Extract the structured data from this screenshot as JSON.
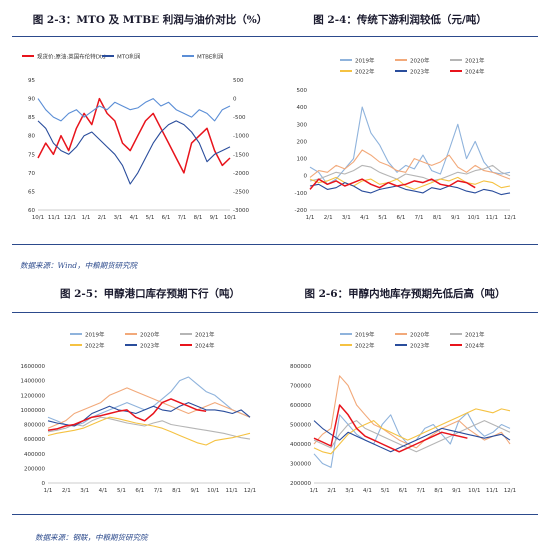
{
  "titles": {
    "c1": "图 2-3：MTO 及 MTBE 利润与油价对比（%）",
    "c2": "图 2-4：传统下游利润较低（元/吨）",
    "c3": "图 2-5：甲醇港口库存预期下行（吨）",
    "c4": "图 2-6：甲醇内地库存预期先低后高（吨）"
  },
  "sources": {
    "top": "数据来源：Wind，中粮期货研究院",
    "bottom": "数据来源：钢联，中粮期货研究院"
  },
  "chart_data": [
    {
      "type": "line",
      "legend": [
        "现货价:原油:英国布伦特Dtd",
        "MTO利润",
        "MTBE利润"
      ],
      "legend_placement": "top",
      "x_ticks": [
        "10/1",
        "11/1",
        "12/1",
        "1/1",
        "2/1",
        "3/1",
        "4/1",
        "5/1",
        "6/1",
        "7/1",
        "8/1",
        "9/1",
        "10/1"
      ],
      "y_left_ticks": [
        "60",
        "65",
        "70",
        "75",
        "80",
        "85",
        "90",
        "95"
      ],
      "y_right_ticks": [
        "-3000",
        "-2500",
        "-2000",
        "-1500",
        "-1000",
        "-500",
        "0",
        "500"
      ],
      "ylim_left": [
        60,
        95
      ],
      "ylim_right": [
        -3000,
        500
      ],
      "series": [
        {
          "name": "现货价:原油:英国布伦特Dtd",
          "color": "#e8141c",
          "axis": "left",
          "values": [
            74,
            78,
            75,
            80,
            76,
            82,
            86,
            83,
            90,
            86,
            84,
            78,
            76,
            80,
            84,
            86,
            82,
            78,
            74,
            70,
            78,
            80,
            82,
            76,
            72,
            74
          ]
        },
        {
          "name": "MTO利润",
          "color": "#2a4d9c",
          "axis": "right",
          "values": [
            -600,
            -800,
            -1200,
            -1400,
            -1500,
            -1300,
            -1000,
            -900,
            -1100,
            -1300,
            -1500,
            -1800,
            -2300,
            -2000,
            -1600,
            -1200,
            -900,
            -700,
            -600,
            -700,
            -900,
            -1200,
            -1700,
            -1500,
            -1400,
            -1300
          ]
        },
        {
          "name": "MTBE利润",
          "color": "#5b8ed6",
          "axis": "right",
          "values": [
            0,
            -300,
            -500,
            -600,
            -400,
            -300,
            -500,
            -350,
            -200,
            -300,
            -100,
            -200,
            -300,
            -250,
            -100,
            0,
            -200,
            -100,
            -300,
            -400,
            -500,
            -300,
            -400,
            -600,
            -300,
            -200
          ]
        }
      ]
    },
    {
      "type": "line",
      "legend": [
        "2019年",
        "2020年",
        "2021年",
        "2022年",
        "2023年",
        "2024年"
      ],
      "legend_placement": "top",
      "x_ticks": [
        "1/1",
        "2/1",
        "3/1",
        "4/1",
        "5/1",
        "6/1",
        "7/1",
        "8/1",
        "9/1",
        "10/1",
        "11/1",
        "12/1"
      ],
      "y_ticks": [
        "-200",
        "-100",
        "0",
        "100",
        "200",
        "300",
        "400",
        "500"
      ],
      "ylim": [
        -200,
        500
      ],
      "series": [
        {
          "name": "2019年",
          "color": "#8fb3dc",
          "values": [
            50,
            20,
            -50,
            -20,
            40,
            100,
            400,
            250,
            180,
            80,
            20,
            60,
            40,
            120,
            30,
            10,
            150,
            300,
            100,
            200,
            80,
            20,
            10,
            20
          ]
        },
        {
          "name": "2020年",
          "color": "#f2a97a",
          "values": [
            -10,
            30,
            20,
            60,
            40,
            80,
            150,
            120,
            80,
            60,
            30,
            20,
            100,
            80,
            60,
            80,
            120,
            50,
            20,
            60,
            30,
            20,
            0,
            -20
          ]
        },
        {
          "name": "2021年",
          "color": "#b5b5b5",
          "values": [
            -30,
            -20,
            0,
            20,
            10,
            30,
            60,
            50,
            20,
            0,
            -20,
            10,
            0,
            -10,
            -30,
            -20,
            0,
            20,
            10,
            30,
            40,
            60,
            20,
            0
          ]
        },
        {
          "name": "2022年",
          "color": "#f5c242",
          "values": [
            -20,
            -40,
            -30,
            -10,
            -40,
            -60,
            -30,
            -20,
            -50,
            -40,
            -20,
            -60,
            -80,
            -60,
            -40,
            -20,
            -30,
            -10,
            -40,
            -50,
            -30,
            -40,
            -70,
            -60
          ]
        },
        {
          "name": "2023年",
          "color": "#2a4d9c",
          "values": [
            -60,
            -50,
            -80,
            -70,
            -40,
            -60,
            -90,
            -100,
            -80,
            -70,
            -60,
            -80,
            -90,
            -100,
            -70,
            -80,
            -60,
            -70,
            -90,
            -100,
            -80,
            -90,
            -110,
            -100
          ]
        },
        {
          "name": "2024年",
          "color": "#e8141c",
          "values": [
            -80,
            -20,
            -50,
            -30,
            -60,
            -40,
            -20,
            -50,
            -70,
            -40,
            -60,
            -50,
            -30,
            -40,
            -20,
            -50,
            -60,
            -30,
            -40,
            -70,
            null,
            null,
            null,
            null
          ]
        }
      ]
    },
    {
      "type": "line",
      "legend": [
        "2019年",
        "2020年",
        "2021年",
        "2022年",
        "2023年",
        "2024年"
      ],
      "legend_placement": "top",
      "x_ticks": [
        "1/1",
        "2/1",
        "3/1",
        "4/1",
        "5/1",
        "6/1",
        "7/1",
        "8/1",
        "9/1",
        "10/1",
        "11/1",
        "12/1"
      ],
      "y_ticks": [
        "0",
        "200000",
        "400000",
        "600000",
        "800000",
        "1000000",
        "1200000",
        "1400000",
        "1600000"
      ],
      "ylim": [
        0,
        1600000
      ],
      "series": [
        {
          "name": "2019年",
          "color": "#8fb3dc",
          "values": [
            900000,
            850000,
            800000,
            780000,
            820000,
            900000,
            950000,
            1000000,
            1050000,
            1100000,
            1050000,
            1000000,
            1050000,
            1150000,
            1250000,
            1400000,
            1450000,
            1350000,
            1250000,
            1200000,
            1100000,
            1000000,
            950000,
            900000
          ]
        },
        {
          "name": "2020年",
          "color": "#f2a97a",
          "values": [
            750000,
            800000,
            850000,
            950000,
            1000000,
            1050000,
            1100000,
            1200000,
            1250000,
            1300000,
            1250000,
            1200000,
            1150000,
            1100000,
            1050000,
            1000000,
            950000,
            1000000,
            1050000,
            1100000,
            1050000,
            1000000,
            950000,
            900000
          ]
        },
        {
          "name": "2021年",
          "color": "#b5b5b5",
          "values": [
            700000,
            720000,
            750000,
            800000,
            780000,
            850000,
            900000,
            880000,
            850000,
            820000,
            800000,
            780000,
            820000,
            850000,
            800000,
            780000,
            760000,
            740000,
            720000,
            700000,
            680000,
            650000,
            620000,
            600000
          ]
        },
        {
          "name": "2022年",
          "color": "#f5c242",
          "values": [
            650000,
            680000,
            700000,
            720000,
            750000,
            800000,
            850000,
            900000,
            880000,
            850000,
            820000,
            800000,
            780000,
            750000,
            700000,
            650000,
            600000,
            550000,
            520000,
            580000,
            600000,
            620000,
            650000,
            680000
          ]
        },
        {
          "name": "2023年",
          "color": "#2a4d9c",
          "values": [
            850000,
            820000,
            800000,
            780000,
            850000,
            950000,
            1000000,
            1050000,
            1000000,
            980000,
            950000,
            1000000,
            1050000,
            1000000,
            980000,
            1050000,
            1100000,
            1050000,
            1000000,
            1000000,
            980000,
            950000,
            1000000,
            900000
          ]
        },
        {
          "name": "2024年",
          "color": "#e8141c",
          "values": [
            720000,
            740000,
            780000,
            800000,
            850000,
            900000,
            920000,
            950000,
            980000,
            1000000,
            900000,
            850000,
            950000,
            1100000,
            1150000,
            1100000,
            1050000,
            1000000,
            980000,
            null,
            null,
            null,
            null,
            null
          ]
        }
      ]
    },
    {
      "type": "line",
      "legend": [
        "2019年",
        "2020年",
        "2021年",
        "2022年",
        "2023年",
        "2024年"
      ],
      "legend_placement": "top",
      "x_ticks": [
        "1/1",
        "2/1",
        "3/1",
        "4/1",
        "5/1",
        "6/1",
        "7/1",
        "8/1",
        "9/1",
        "10/1",
        "11/1",
        "12/1"
      ],
      "y_ticks": [
        "200000",
        "300000",
        "400000",
        "500000",
        "600000",
        "700000",
        "800000"
      ],
      "ylim": [
        200000,
        800000
      ],
      "series": [
        {
          "name": "2019年",
          "color": "#8fb3dc",
          "values": [
            350000,
            300000,
            280000,
            550000,
            500000,
            450000,
            420000,
            400000,
            500000,
            550000,
            450000,
            400000,
            420000,
            480000,
            500000,
            450000,
            400000,
            520000,
            560000,
            480000,
            440000,
            460000,
            500000,
            480000
          ]
        },
        {
          "name": "2020年",
          "color": "#f2a97a",
          "values": [
            400000,
            450000,
            480000,
            750000,
            700000,
            600000,
            550000,
            500000,
            480000,
            450000,
            420000,
            400000,
            380000,
            420000,
            450000,
            480000,
            500000,
            520000,
            480000,
            450000,
            420000,
            440000,
            460000,
            400000
          ]
        },
        {
          "name": "2021年",
          "color": "#b5b5b5",
          "values": [
            420000,
            400000,
            380000,
            450000,
            500000,
            520000,
            480000,
            460000,
            440000,
            420000,
            400000,
            380000,
            360000,
            380000,
            400000,
            420000,
            440000,
            460000,
            480000,
            500000,
            520000,
            500000,
            480000,
            460000
          ]
        },
        {
          "name": "2022年",
          "color": "#f5c242",
          "values": [
            380000,
            360000,
            350000,
            400000,
            450000,
            480000,
            500000,
            520000,
            480000,
            460000,
            440000,
            420000,
            440000,
            460000,
            480000,
            500000,
            520000,
            540000,
            560000,
            580000,
            570000,
            560000,
            580000,
            570000
          ]
        },
        {
          "name": "2023年",
          "color": "#2a4d9c",
          "values": [
            520000,
            480000,
            450000,
            420000,
            460000,
            440000,
            420000,
            400000,
            380000,
            360000,
            380000,
            400000,
            420000,
            440000,
            460000,
            480000,
            470000,
            460000,
            450000,
            440000,
            430000,
            440000,
            450000,
            420000
          ]
        },
        {
          "name": "2024年",
          "color": "#e8141c",
          "values": [
            430000,
            410000,
            390000,
            600000,
            550000,
            480000,
            440000,
            420000,
            400000,
            380000,
            360000,
            380000,
            400000,
            420000,
            440000,
            460000,
            450000,
            440000,
            430000,
            null,
            null,
            null,
            null,
            null
          ]
        }
      ]
    }
  ]
}
